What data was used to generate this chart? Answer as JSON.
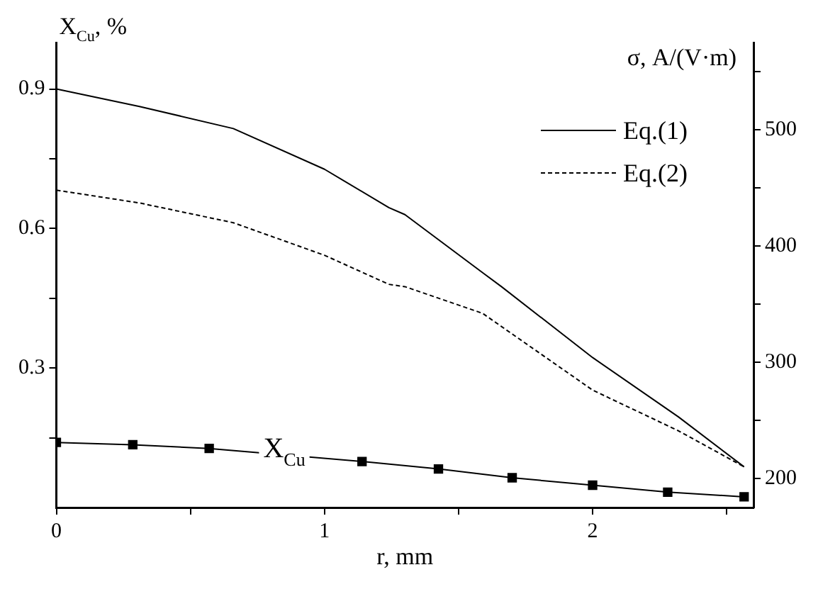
{
  "chart_data": {
    "type": "line",
    "xlabel": "r, mm",
    "ylabel": "X$_{Cu}$, %",
    "y2label": "σ, A/(V·m)",
    "xlim": [
      0,
      2.6
    ],
    "xticks": [
      0,
      {
        "value": 0.5,
        "label": null
      },
      1,
      {
        "value": 1.5,
        "label": null
      },
      2,
      {
        "value": 2.5,
        "label": null
      }
    ],
    "ylim": [
      0,
      1
    ],
    "yticks": [
      {
        "value": 0.15,
        "label": null
      },
      0.3,
      {
        "value": 0.45,
        "label": null
      },
      0.6,
      {
        "value": 0.75,
        "label": null
      },
      0.9
    ],
    "y2lim": [
      175,
      575
    ],
    "y2ticks": [
      200,
      {
        "value": 250,
        "label": null
      },
      300,
      {
        "value": 350,
        "label": null
      },
      400,
      {
        "value": 450,
        "label": null
      },
      500,
      {
        "value": 550,
        "label": null
      }
    ],
    "grid": false,
    "legend": "top right",
    "annotations": [
      {
        "text": "X$_{Cu}$",
        "x": 0.85,
        "y": 0.12
      }
    ],
    "series": [
      {
        "name": "Eq.(1)",
        "color": "#000000",
        "axis": "y2",
        "marker": "none",
        "line_style": "solid",
        "x": [
          0,
          0.31,
          0.66,
          1.0,
          1.24,
          1.3,
          1.59,
          1.66,
          2.0,
          2.32,
          2.565
        ],
        "values": [
          535,
          520,
          501,
          466,
          433,
          427,
          377,
          365,
          304,
          253,
          210
        ]
      },
      {
        "name": "Eq.(2)",
        "color": "#000000",
        "axis": "y2",
        "marker": "none",
        "line_style": "dashed",
        "x": [
          0,
          0.31,
          0.66,
          1.0,
          1.24,
          1.3,
          1.59,
          2.0,
          2.32,
          2.565
        ],
        "values": [
          448,
          437,
          420,
          392,
          367,
          365,
          342,
          276,
          241,
          210
        ]
      },
      {
        "color": "#000000",
        "marker": "square",
        "line_style": "solid",
        "x": [
          0,
          0.285,
          0.57,
          1.14,
          1.425,
          1.7,
          2.0,
          2.28,
          2.565
        ],
        "values": [
          0.14,
          0.135,
          0.127,
          0.099,
          0.083,
          0.064,
          0.048,
          0.033,
          0.023
        ]
      }
    ]
  }
}
